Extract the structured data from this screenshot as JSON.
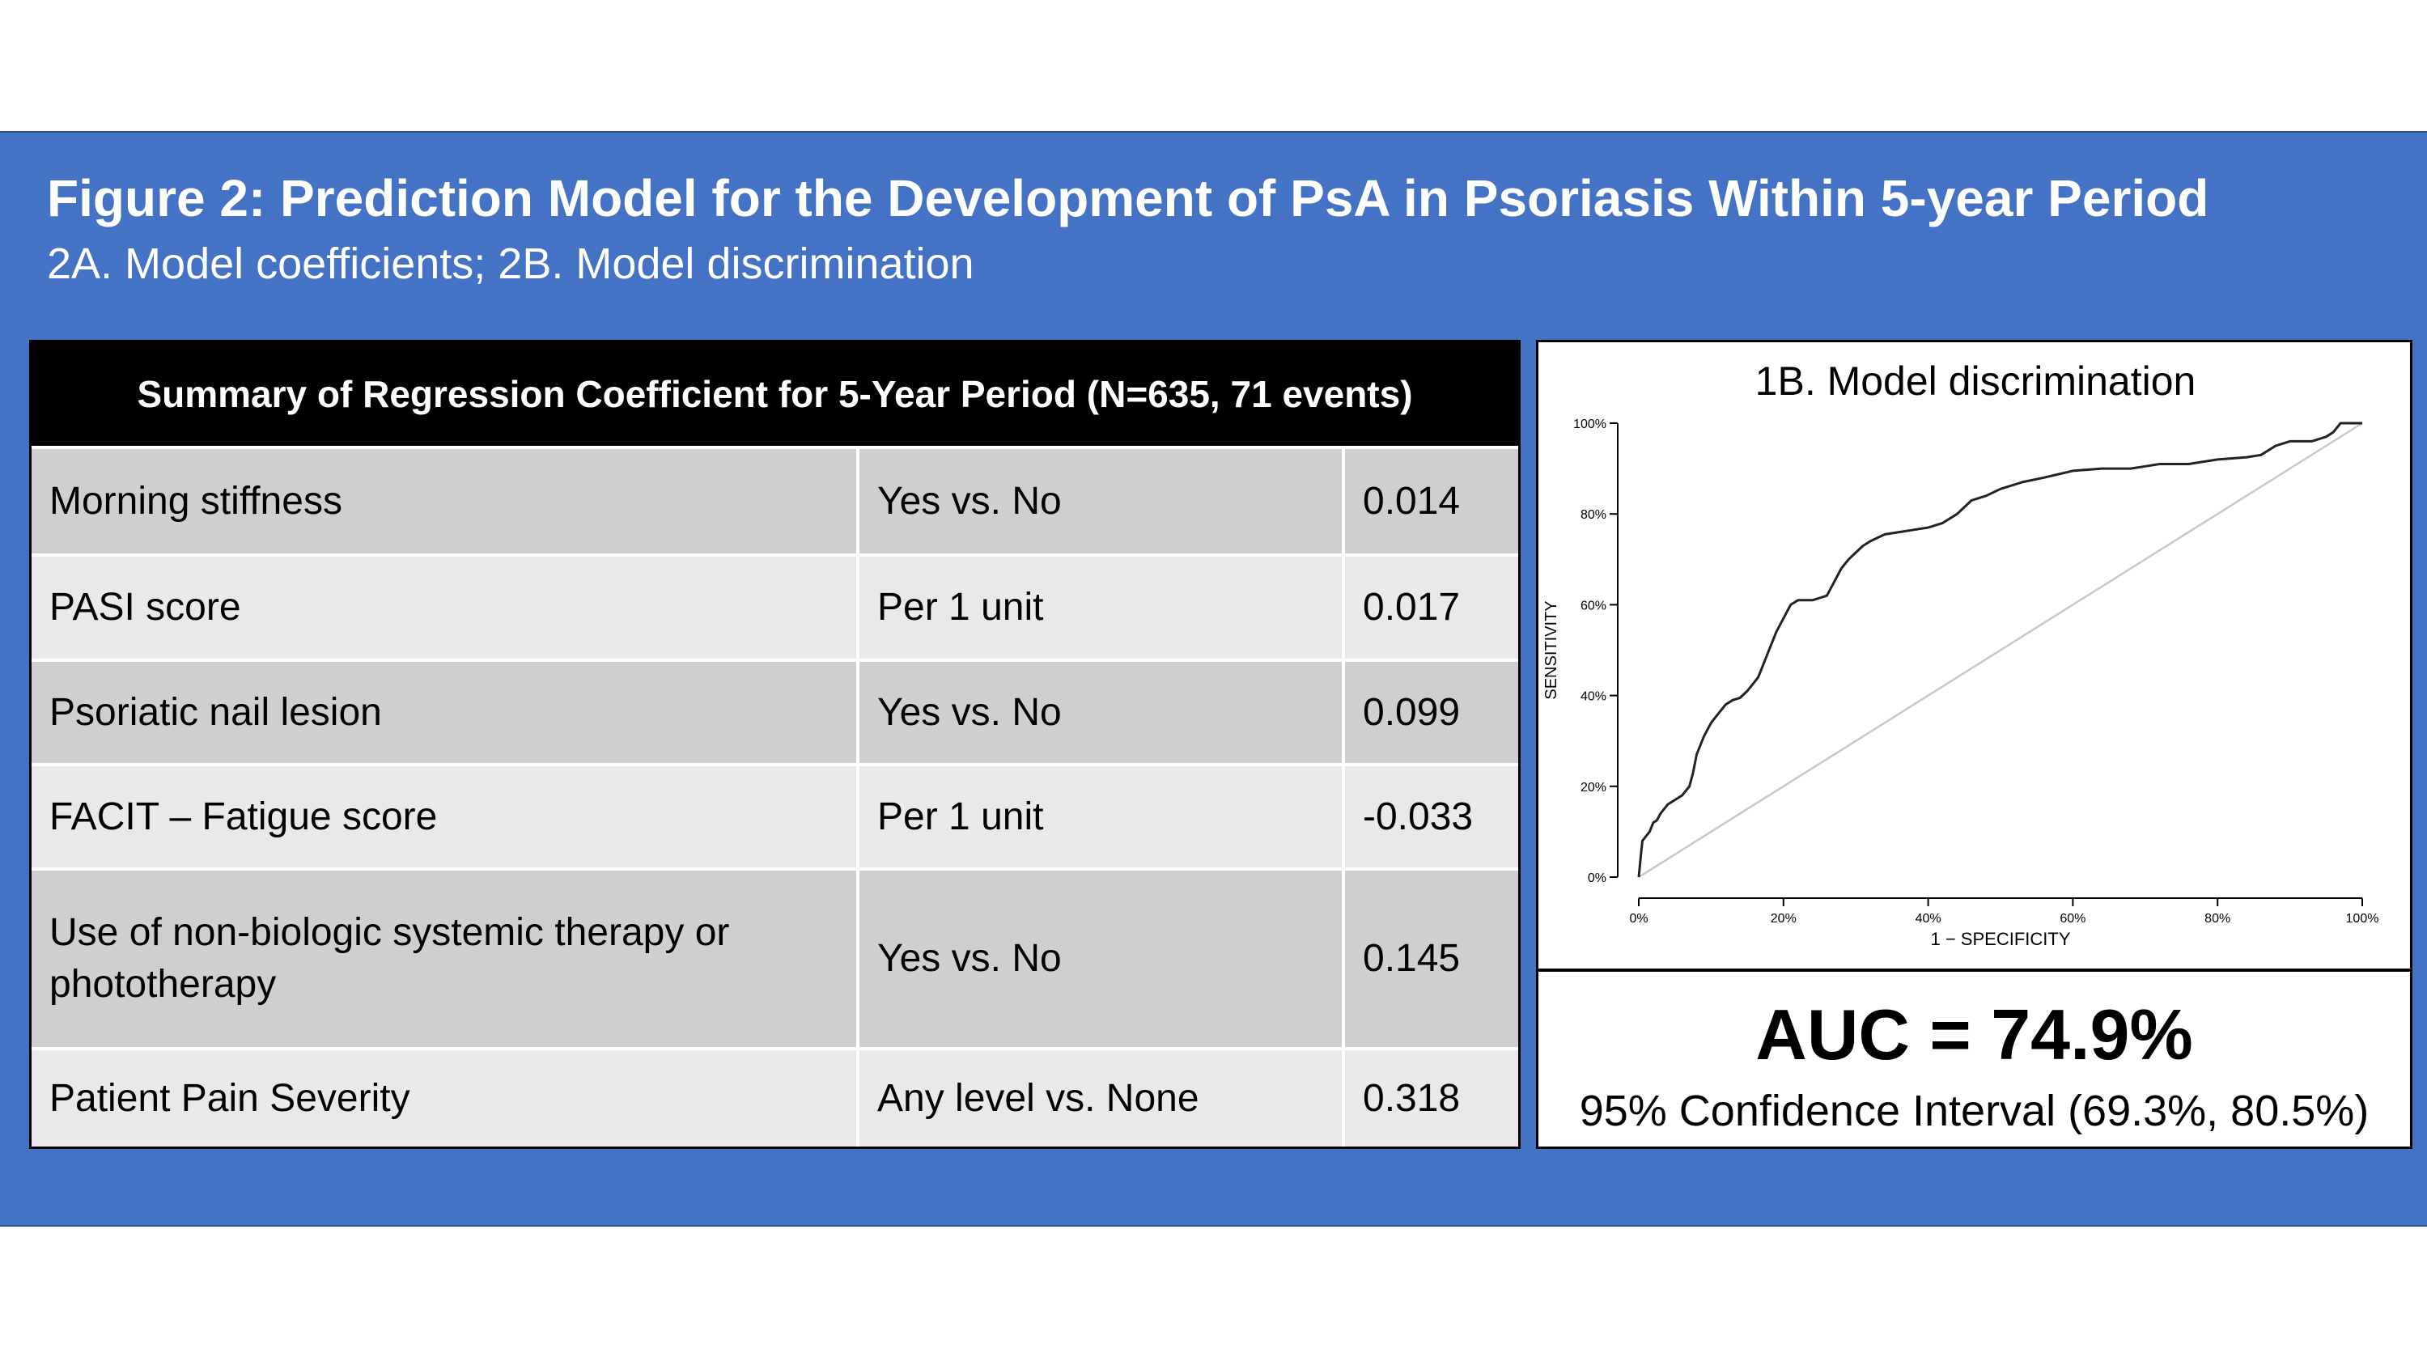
{
  "figure": {
    "title": "Figure 2: Prediction Model for the Development of PsA in Psoriasis Within 5-year Period",
    "subtitle": "2A. Model coefficients; 2B. Model discrimination"
  },
  "table": {
    "header": "Summary of Regression Coefficient for 5-Year Period (N=635, 71 events)",
    "rows": [
      {
        "variable": "Morning stiffness",
        "comparison": "Yes vs. No",
        "coefficient": "0.014"
      },
      {
        "variable": "PASI score",
        "comparison": "Per 1 unit",
        "coefficient": "0.017"
      },
      {
        "variable": "Psoriatic nail lesion",
        "comparison": "Yes vs. No",
        "coefficient": "0.099"
      },
      {
        "variable": "FACIT – Fatigue score",
        "comparison": "Per 1 unit",
        "coefficient": "-0.033"
      },
      {
        "variable": "Use of non-biologic systemic therapy or phototherapy",
        "comparison": "Yes vs. No",
        "coefficient": "0.145"
      },
      {
        "variable": "Patient Pain Severity",
        "comparison": "Any level vs. None",
        "coefficient": "0.318"
      }
    ]
  },
  "auc": {
    "value": "AUC = 74.9%",
    "ci": "95% Confidence Interval (69.3%, 80.5%)"
  },
  "chart_data": {
    "type": "line",
    "title": "1B. Model discrimination",
    "xlabel": "1 − SPECIFICITY",
    "ylabel": "SENSITIVITY",
    "xlim": [
      0,
      100
    ],
    "ylim": [
      0,
      100
    ],
    "x_ticks": [
      "0%",
      "20%",
      "40%",
      "60%",
      "80%",
      "100%"
    ],
    "y_ticks": [
      "0%",
      "20%",
      "40%",
      "60%",
      "80%",
      "100%"
    ],
    "grid": false,
    "series": [
      {
        "color": "#222222",
        "x": [
          0,
          0.3,
          0.5,
          1,
          1.5,
          2,
          2.5,
          3,
          4,
          5,
          6,
          7,
          7.5,
          8,
          9,
          10,
          11,
          12,
          13,
          14,
          15,
          16,
          16.5,
          17,
          18,
          19,
          20,
          21,
          22,
          23,
          24,
          25,
          26,
          27,
          28,
          29,
          30,
          31,
          32,
          34,
          36,
          38,
          40,
          42,
          44,
          46,
          48,
          50,
          53,
          56,
          60,
          64,
          68,
          70,
          72,
          76,
          80,
          84,
          86,
          88,
          90,
          93,
          95,
          96,
          97,
          100
        ],
        "y": [
          0,
          5,
          8,
          9,
          10,
          12,
          12.5,
          14,
          16,
          17,
          18,
          20,
          23,
          27,
          31,
          34,
          36,
          38,
          39,
          39.5,
          41,
          43,
          44,
          46,
          50,
          54,
          57,
          60,
          61,
          61,
          61,
          61.5,
          62,
          65,
          68,
          70,
          71.5,
          73,
          74,
          75.5,
          76,
          76.5,
          77,
          78,
          80,
          83,
          84,
          85.5,
          87,
          88,
          89.5,
          90,
          90,
          90.5,
          91,
          91,
          92,
          92.5,
          93,
          95,
          96,
          96,
          97,
          98,
          100,
          100
        ]
      },
      {
        "name": "reference",
        "color": "#c8c8c8",
        "x": [
          0,
          100
        ],
        "y": [
          0,
          100
        ]
      }
    ]
  }
}
